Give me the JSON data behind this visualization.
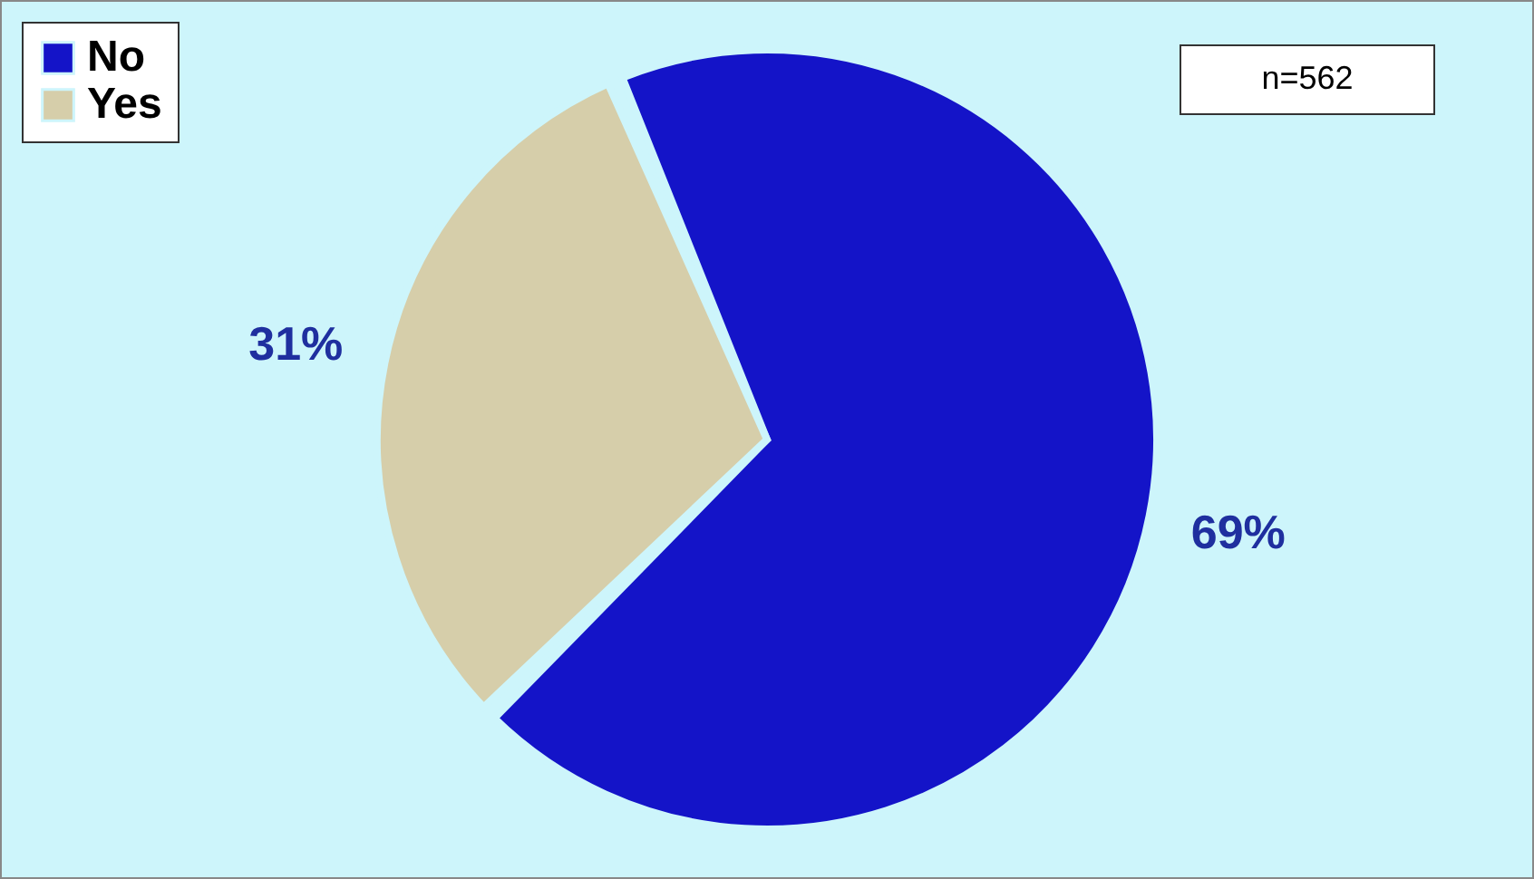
{
  "chart_data": {
    "type": "pie",
    "categories": [
      "No",
      "Yes"
    ],
    "values": [
      69,
      31
    ],
    "colors": [
      "#1414c8",
      "#d6ceaa"
    ],
    "value_labels": [
      "69%",
      "31%"
    ],
    "annotations": [
      "n=562"
    ],
    "legend": "top left"
  }
}
